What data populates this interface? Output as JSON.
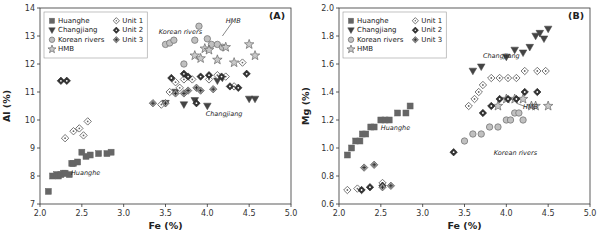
{
  "chart_data": [
    {
      "type": "scatter",
      "title": "(A)",
      "xlabel": "Fe (%)",
      "ylabel": "Al (%)",
      "xlim": [
        2.0,
        5.0
      ],
      "ylim": [
        7.0,
        14.0
      ],
      "xticks": [
        {
          "value": 2.0,
          "label": "2.0"
        },
        2.5,
        {
          "value": 3.0,
          "label": "3.0"
        },
        3.5,
        {
          "value": 4.0,
          "label": "4.0"
        },
        4.5,
        {
          "value": 5.0,
          "label": "5.0"
        }
      ],
      "yticks": [
        7,
        8,
        9,
        10,
        11,
        12,
        13,
        14
      ],
      "legend": "upper left",
      "annotations": [
        {
          "x": 2.37,
          "y": 8.1,
          "text": "Huanghe"
        },
        {
          "x": 3.98,
          "y": 10.2,
          "text": "Changjiang"
        },
        {
          "x": 3.42,
          "y": 13.15,
          "text": "Korean rivers"
        },
        {
          "x": 4.22,
          "y": 13.55,
          "text": "HMB",
          "xy": [
            4.18,
            13.0
          ],
          "xytext": [
            4.3,
            13.5
          ]
        }
      ],
      "series": [
        {
          "name": "Huanghe",
          "color": "#666666",
          "marker": "square",
          "x": [
            2.1,
            2.15,
            2.2,
            2.22,
            2.25,
            2.28,
            2.3,
            2.35,
            2.38,
            2.4,
            2.45,
            2.5,
            2.55,
            2.6,
            2.7,
            2.8,
            2.85
          ],
          "values": [
            7.45,
            8.0,
            8.05,
            8.0,
            8.05,
            8.1,
            8.1,
            8.05,
            8.45,
            8.45,
            8.5,
            8.85,
            8.7,
            8.75,
            8.8,
            8.8,
            8.85
          ]
        },
        {
          "name": "Changjiang",
          "color": "#444444",
          "marker": "triangle-down",
          "x": [
            3.5,
            3.62,
            3.72,
            3.85,
            4.0,
            4.12,
            4.18,
            4.5,
            4.57
          ],
          "values": [
            10.6,
            11.0,
            10.55,
            10.7,
            10.5,
            11.4,
            11.5,
            10.75,
            10.75
          ]
        },
        {
          "name": "Korean rivers",
          "color": "#c0c0c0",
          "marker": "circle",
          "x": [
            3.5,
            3.55,
            3.6,
            3.72,
            3.85,
            3.9,
            4.0,
            4.05,
            4.12,
            4.18
          ],
          "values": [
            12.7,
            12.75,
            12.85,
            12.0,
            12.85,
            13.35,
            12.9,
            12.7,
            12.7,
            12.6
          ]
        },
        {
          "name": "HMB",
          "color": "#c8c8c8",
          "marker": "star",
          "x": [
            3.85,
            3.92,
            3.97,
            4.02,
            4.12,
            4.22,
            4.32,
            4.5,
            4.57
          ],
          "values": [
            12.3,
            12.2,
            12.55,
            12.5,
            12.15,
            12.6,
            12.05,
            12.7,
            12.3
          ]
        },
        {
          "name": "Unit 1",
          "color": "#666666",
          "marker": "diamond-open-dot",
          "x": [
            2.3,
            2.4,
            2.47,
            2.52,
            2.57,
            3.45,
            3.55,
            3.62,
            3.67,
            3.72,
            3.82,
            4.02,
            4.12,
            4.22,
            4.32,
            4.42
          ],
          "values": [
            9.35,
            9.6,
            9.7,
            9.45,
            9.95,
            10.55,
            11.0,
            11.35,
            11.15,
            11.45,
            11.45,
            11.45,
            11.6,
            11.55,
            11.2,
            12.05
          ]
        },
        {
          "name": "Unit 2",
          "color": "#333333",
          "marker": "diamond-dot",
          "x": [
            2.25,
            2.32,
            3.57,
            3.72,
            3.77,
            3.87,
            3.92,
            4.02,
            4.17,
            4.27,
            4.37,
            4.47
          ],
          "values": [
            11.4,
            11.4,
            11.5,
            11.65,
            11.55,
            10.6,
            11.55,
            11.6,
            11.55,
            11.2,
            11.15,
            11.65
          ]
        },
        {
          "name": "Unit 3",
          "color": "#999999",
          "marker": "diamond-plus",
          "x": [
            3.35,
            3.5,
            3.62,
            3.72,
            3.77,
            3.87,
            3.92,
            4.07
          ],
          "values": [
            10.6,
            10.6,
            10.95,
            10.95,
            11.05,
            11.15,
            11.05,
            11.1
          ]
        }
      ]
    },
    {
      "type": "scatter",
      "title": "(B)",
      "xlabel": "Fe (%)",
      "ylabel": "Mg (%)",
      "xlim": [
        2.0,
        5.0
      ],
      "ylim": [
        0.6,
        2.0
      ],
      "xticks": [
        {
          "value": 2.0,
          "label": "2.0"
        },
        2.5,
        {
          "value": 3.0,
          "label": "3.0"
        },
        3.5,
        {
          "value": 4.0,
          "label": "4.0"
        },
        4.5,
        {
          "value": 5.0,
          "label": "5.0"
        }
      ],
      "yticks": [
        0.6,
        0.8,
        {
          "value": 1.0,
          "label": "1.0"
        },
        1.2,
        1.4,
        1.6,
        1.8,
        {
          "value": 2.0,
          "label": "2.0"
        }
      ],
      "legend": "upper left",
      "annotations": [
        {
          "x": 2.5,
          "y": 1.14,
          "text": "Huanghe"
        },
        {
          "x": 3.72,
          "y": 1.66,
          "text": "Changjiang"
        },
        {
          "x": 3.85,
          "y": 0.965,
          "text": "Korean rivers"
        },
        {
          "x": 4.2,
          "y": 1.29,
          "text": "HMB",
          "xy": [
            4.12,
            1.32
          ],
          "xytext": [
            4.25,
            1.29
          ]
        }
      ],
      "series": [
        {
          "name": "Huanghe",
          "color": "#666666",
          "marker": "square",
          "x": [
            2.1,
            2.15,
            2.2,
            2.25,
            2.28,
            2.32,
            2.38,
            2.42,
            2.5,
            2.55,
            2.6,
            2.7,
            2.8,
            2.85
          ],
          "values": [
            0.95,
            1.0,
            1.05,
            1.05,
            1.1,
            1.1,
            1.15,
            1.15,
            1.2,
            1.2,
            1.2,
            1.25,
            1.25,
            1.3
          ]
        },
        {
          "name": "Changjiang",
          "color": "#444444",
          "marker": "triangle-down",
          "x": [
            3.6,
            3.7,
            4.0,
            4.1,
            4.2,
            4.28,
            4.35,
            4.4,
            4.45,
            4.5
          ],
          "values": [
            1.55,
            1.58,
            1.65,
            1.7,
            1.68,
            1.72,
            1.8,
            1.82,
            1.78,
            1.85
          ]
        },
        {
          "name": "Korean rivers",
          "color": "#c0c0c0",
          "marker": "circle",
          "x": [
            3.5,
            3.6,
            3.7,
            3.8,
            3.9,
            4.0,
            4.05,
            4.1,
            4.15,
            4.2
          ],
          "values": [
            1.05,
            1.1,
            1.1,
            1.15,
            1.15,
            1.2,
            1.2,
            1.25,
            1.25,
            1.2
          ]
        },
        {
          "name": "HMB",
          "color": "#c8c8c8",
          "marker": "star",
          "x": [
            3.9,
            4.0,
            4.1,
            4.2,
            4.3,
            4.35,
            4.5
          ],
          "values": [
            1.3,
            1.35,
            1.35,
            1.35,
            1.3,
            1.3,
            1.3
          ]
        },
        {
          "name": "Unit 1",
          "color": "#666666",
          "marker": "diamond-open-dot",
          "x": [
            2.1,
            2.22,
            2.52,
            3.55,
            3.62,
            3.67,
            3.72,
            3.82,
            3.92,
            4.02,
            4.12,
            4.22,
            4.37,
            4.47
          ],
          "values": [
            0.7,
            0.71,
            0.75,
            1.3,
            1.35,
            1.4,
            1.45,
            1.5,
            1.5,
            1.5,
            1.5,
            1.55,
            1.55,
            1.55
          ]
        },
        {
          "name": "Unit 2",
          "color": "#333333",
          "marker": "diamond-dot",
          "x": [
            2.27,
            2.37,
            2.52,
            3.37,
            3.72,
            3.82,
            3.92,
            4.02,
            4.12,
            4.22,
            4.37
          ],
          "values": [
            0.7,
            0.72,
            0.73,
            0.97,
            1.25,
            1.3,
            1.35,
            1.35,
            1.35,
            1.4,
            1.4
          ]
        },
        {
          "name": "Unit 3",
          "color": "#999999",
          "marker": "diamond-plus",
          "x": [
            2.3,
            2.42,
            2.52,
            2.62
          ],
          "values": [
            0.86,
            0.88,
            0.72,
            0.73
          ]
        }
      ]
    }
  ]
}
